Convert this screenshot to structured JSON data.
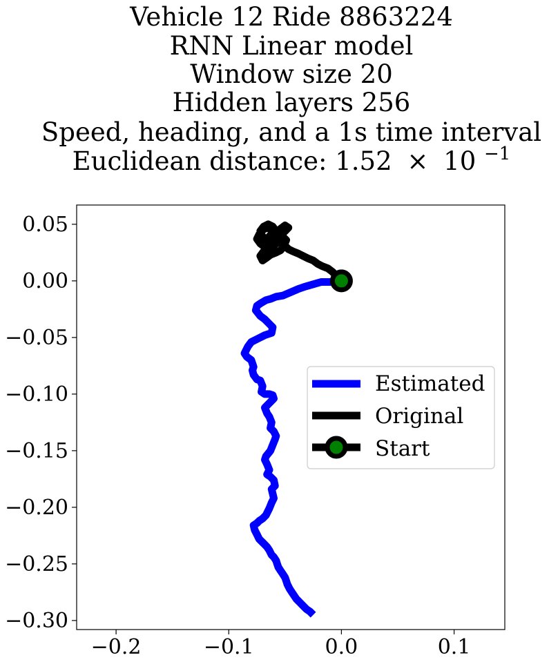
{
  "chart_data": {
    "type": "line",
    "title_lines": [
      "Vehicle 12 Ride 8863224",
      "RNN Linear model",
      "Window size 20",
      "Hidden layers 256",
      "Speed, heading, and a 1s time interval"
    ],
    "title_metric": {
      "prefix": "Euclidean distance: 1.52",
      "times": "×",
      "base": "10",
      "exponent": "−1"
    },
    "xlim": [
      -0.235,
      0.145
    ],
    "ylim": [
      -0.308,
      0.067
    ],
    "x_ticks": [
      {
        "value": -0.2,
        "label": "−0.2"
      },
      {
        "value": -0.1,
        "label": "−0.1"
      },
      {
        "value": 0.0,
        "label": "0.0"
      },
      {
        "value": 0.1,
        "label": "0.1"
      }
    ],
    "y_ticks": [
      {
        "value": 0.05,
        "label": "0.05"
      },
      {
        "value": 0.0,
        "label": "0.00"
      },
      {
        "value": -0.05,
        "label": "−0.05"
      },
      {
        "value": -0.1,
        "label": "−0.10"
      },
      {
        "value": -0.15,
        "label": "−0.15"
      },
      {
        "value": -0.2,
        "label": "−0.20"
      },
      {
        "value": -0.25,
        "label": "−0.25"
      },
      {
        "value": -0.3,
        "label": "−0.30"
      }
    ],
    "grid": false,
    "legend_position": "center-right",
    "series": [
      {
        "name": "Estimated",
        "color": "#0000ff",
        "x": [
          0,
          -0.003,
          -0.01,
          -0.018,
          -0.025,
          -0.032,
          -0.038,
          -0.045,
          -0.052,
          -0.058,
          -0.063,
          -0.067,
          -0.072,
          -0.075,
          -0.076,
          -0.072,
          -0.068,
          -0.064,
          -0.061,
          -0.062,
          -0.068,
          -0.074,
          -0.08,
          -0.083,
          -0.086,
          -0.084,
          -0.08,
          -0.078,
          -0.079,
          -0.078,
          -0.075,
          -0.072,
          -0.07,
          -0.071,
          -0.068,
          -0.064,
          -0.061,
          -0.06,
          -0.064,
          -0.068,
          -0.066,
          -0.064,
          -0.062,
          -0.063,
          -0.06,
          -0.058,
          -0.059,
          -0.061,
          -0.063,
          -0.067,
          -0.068,
          -0.066,
          -0.064,
          -0.066,
          -0.063,
          -0.06,
          -0.059,
          -0.062,
          -0.061,
          -0.06,
          -0.062,
          -0.064,
          -0.067,
          -0.07,
          -0.073,
          -0.075,
          -0.078,
          -0.077,
          -0.075,
          -0.073,
          -0.07,
          -0.068,
          -0.066,
          -0.064,
          -0.063,
          -0.062,
          -0.06,
          -0.058,
          -0.057,
          -0.056,
          -0.054,
          -0.052,
          -0.05,
          -0.049,
          -0.048,
          -0.046,
          -0.044,
          -0.042,
          -0.04,
          -0.037,
          -0.034,
          -0.031,
          -0.028,
          -0.025
        ],
        "y": [
          0,
          0.0,
          -0.001,
          -0.001,
          -0.003,
          -0.005,
          -0.007,
          -0.01,
          -0.013,
          -0.014,
          -0.016,
          -0.017,
          -0.02,
          -0.022,
          -0.026,
          -0.031,
          -0.034,
          -0.038,
          -0.041,
          -0.046,
          -0.048,
          -0.051,
          -0.054,
          -0.058,
          -0.064,
          -0.067,
          -0.07,
          -0.076,
          -0.079,
          -0.083,
          -0.087,
          -0.088,
          -0.093,
          -0.098,
          -0.1,
          -0.1,
          -0.101,
          -0.104,
          -0.108,
          -0.112,
          -0.117,
          -0.12,
          -0.125,
          -0.13,
          -0.133,
          -0.137,
          -0.14,
          -0.145,
          -0.15,
          -0.155,
          -0.158,
          -0.162,
          -0.167,
          -0.171,
          -0.173,
          -0.176,
          -0.181,
          -0.184,
          -0.188,
          -0.192,
          -0.196,
          -0.201,
          -0.207,
          -0.21,
          -0.212,
          -0.214,
          -0.216,
          -0.22,
          -0.224,
          -0.228,
          -0.231,
          -0.233,
          -0.235,
          -0.238,
          -0.24,
          -0.242,
          -0.244,
          -0.247,
          -0.25,
          -0.253,
          -0.256,
          -0.259,
          -0.262,
          -0.265,
          -0.268,
          -0.272,
          -0.275,
          -0.278,
          -0.281,
          -0.284,
          -0.287,
          -0.29,
          -0.292,
          -0.295
        ]
      },
      {
        "name": "Original",
        "color": "#000000",
        "x": [
          0,
          -0.004,
          -0.008,
          -0.012,
          -0.017,
          -0.021,
          -0.025,
          -0.03,
          -0.034,
          -0.038,
          -0.043,
          -0.047,
          -0.05,
          -0.053,
          -0.057,
          -0.061,
          -0.065,
          -0.069,
          -0.072,
          -0.07,
          -0.067,
          -0.063,
          -0.058,
          -0.054,
          -0.051,
          -0.049,
          -0.053,
          -0.058,
          -0.062,
          -0.066,
          -0.07,
          -0.073,
          -0.075,
          -0.072,
          -0.068,
          -0.064,
          -0.061,
          -0.058,
          -0.055,
          -0.052,
          -0.049,
          -0.047,
          -0.05,
          -0.054,
          -0.058,
          -0.062,
          -0.066,
          -0.07,
          -0.072,
          -0.069,
          -0.065,
          -0.061,
          -0.058,
          -0.055,
          -0.058,
          -0.062,
          -0.066
        ],
        "y": [
          0,
          0.004,
          0.008,
          0.011,
          0.013,
          0.015,
          0.018,
          0.02,
          0.022,
          0.024,
          0.026,
          0.028,
          0.031,
          0.034,
          0.036,
          0.035,
          0.031,
          0.026,
          0.022,
          0.018,
          0.02,
          0.023,
          0.025,
          0.027,
          0.031,
          0.036,
          0.04,
          0.043,
          0.045,
          0.047,
          0.045,
          0.041,
          0.037,
          0.033,
          0.03,
          0.028,
          0.03,
          0.033,
          0.037,
          0.042,
          0.045,
          0.047,
          0.049,
          0.046,
          0.042,
          0.038,
          0.035,
          0.039,
          0.044,
          0.048,
          0.05,
          0.048,
          0.044,
          0.04,
          0.036,
          0.038,
          0.042
        ]
      }
    ],
    "start_point": {
      "name": "Start",
      "x": 0.0,
      "y": 0.0,
      "edge_color": "#000000",
      "face_color": "#008000"
    }
  }
}
